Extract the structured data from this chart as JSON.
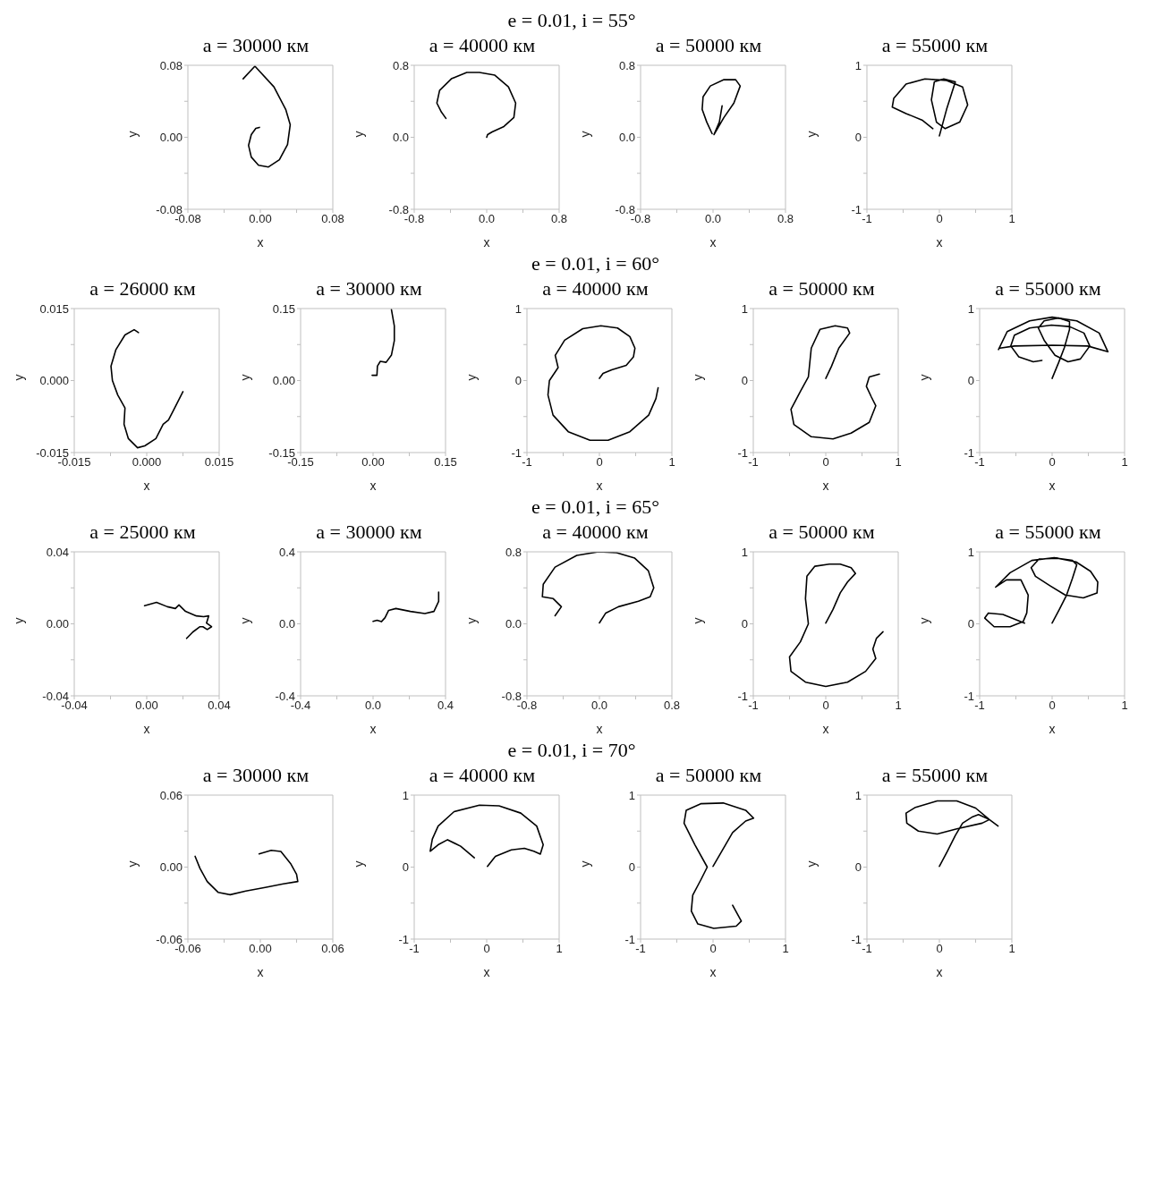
{
  "chart_data": [
    {
      "type": "line",
      "title": "a = 30000 км",
      "xlabel": "x",
      "ylabel": "y",
      "xlim": [
        -0.08,
        0.08
      ],
      "ylim": [
        -0.08,
        0.08
      ],
      "xticks": [
        -0.08,
        {
          "value": -0.04,
          "label": null
        },
        {
          "value": 0,
          "label": "0.00"
        },
        {
          "value": 0.04,
          "label": null
        },
        0.08
      ],
      "yticks": [
        -0.08,
        {
          "value": -0.04,
          "label": null
        },
        {
          "value": 0,
          "label": "0.00"
        },
        {
          "value": 0.04,
          "label": null
        },
        0.08
      ],
      "series": [
        {
          "color": "#000000",
          "x": [
            -0.019,
            -0.006,
            0.015,
            0.028,
            0.033,
            0.03,
            0.021,
            0.009,
            -0.002,
            -0.01,
            -0.013,
            -0.01,
            -0.005,
            -0.001
          ],
          "values": [
            0.065,
            0.079,
            0.056,
            0.031,
            0.014,
            -0.008,
            -0.025,
            -0.033,
            -0.031,
            -0.022,
            -0.009,
            0.003,
            0.01,
            0.011
          ]
        }
      ]
    },
    {
      "type": "line",
      "subtitle": "e = 0.01, i = 55°",
      "title": "a = 40000 км",
      "xlabel": "x",
      "ylabel": "y",
      "xlim": [
        -0.8,
        0.8
      ],
      "ylim": [
        -0.8,
        0.8
      ],
      "xticks": [
        -0.8,
        {
          "value": -0.4,
          "label": null
        },
        {
          "value": 0,
          "label": "0.0"
        },
        {
          "value": 0.4,
          "label": null
        },
        0.8
      ],
      "yticks": [
        -0.8,
        {
          "value": -0.4,
          "label": null
        },
        {
          "value": 0,
          "label": "0.0"
        },
        {
          "value": 0.4,
          "label": null
        },
        0.8
      ],
      "series": [
        {
          "color": "#000000",
          "x": [
            0,
            0.01,
            0.06,
            0.19,
            0.3,
            0.32,
            0.24,
            0.09,
            -0.08,
            -0.22,
            -0.39,
            -0.52,
            -0.55,
            -0.5,
            -0.45
          ],
          "values": [
            0,
            0.03,
            0.06,
            0.12,
            0.22,
            0.38,
            0.56,
            0.69,
            0.72,
            0.72,
            0.65,
            0.52,
            0.38,
            0.28,
            0.21
          ]
        }
      ]
    },
    {
      "type": "line",
      "title": "a = 50000 км",
      "xlabel": "x",
      "ylabel": "y",
      "xlim": [
        -0.8,
        0.8
      ],
      "ylim": [
        -0.8,
        0.8
      ],
      "xticks": [
        -0.8,
        {
          "value": -0.4,
          "label": null
        },
        {
          "value": 0,
          "label": "0.0"
        },
        {
          "value": 0.4,
          "label": null
        },
        0.8
      ],
      "yticks": [
        -0.8,
        {
          "value": -0.4,
          "label": null
        },
        {
          "value": 0,
          "label": "0.0"
        },
        {
          "value": 0.4,
          "label": null
        },
        0.8
      ],
      "series": [
        {
          "color": "#000000",
          "x": [
            0.1,
            0.07,
            0.01,
            0.12,
            0.23,
            0.3,
            0.25,
            0.12,
            -0.03,
            -0.11,
            -0.12,
            -0.07,
            -0.01
          ],
          "values": [
            0.35,
            0.17,
            0.03,
            0.22,
            0.38,
            0.57,
            0.64,
            0.64,
            0.57,
            0.45,
            0.31,
            0.17,
            0.04
          ]
        }
      ]
    },
    {
      "type": "line",
      "title": "a = 55000 км",
      "xlabel": "x",
      "ylabel": "y",
      "xlim": [
        -1,
        1
      ],
      "ylim": [
        -1,
        1
      ],
      "xticks": [
        -1,
        {
          "value": -0.5,
          "label": null
        },
        0,
        {
          "value": 0.5,
          "label": null
        },
        1
      ],
      "yticks": [
        -1,
        {
          "value": -0.5,
          "label": null
        },
        0,
        {
          "value": 0.5,
          "label": null
        },
        1
      ],
      "series": [
        {
          "color": "#000000",
          "x": [
            0.0,
            0.1,
            0.22,
            0.06,
            -0.07,
            -0.11,
            -0.04,
            0.08,
            0.28,
            0.39,
            0.32,
            0.1,
            -0.2,
            -0.46,
            -0.63,
            -0.65,
            -0.46,
            -0.24,
            -0.09
          ],
          "values": [
            0.02,
            0.39,
            0.77,
            0.81,
            0.77,
            0.52,
            0.21,
            0.12,
            0.21,
            0.45,
            0.7,
            0.79,
            0.81,
            0.74,
            0.54,
            0.42,
            0.33,
            0.24,
            0.12
          ]
        }
      ]
    },
    {
      "type": "line",
      "title": "a = 26000 км",
      "xlabel": "x",
      "ylabel": "y",
      "xlim": [
        -0.015,
        0.015
      ],
      "ylim": [
        -0.015,
        0.015
      ],
      "xticks": [
        -0.015,
        {
          "value": -0.0075,
          "label": null
        },
        {
          "value": 0,
          "label": "0.000"
        },
        {
          "value": 0.0075,
          "label": null
        },
        0.015
      ],
      "yticks": [
        -0.015,
        {
          "value": -0.0075,
          "label": null
        },
        {
          "value": 0,
          "label": "0.000"
        },
        {
          "value": 0.0075,
          "label": null
        },
        0.015
      ],
      "series": [
        {
          "color": "#000000",
          "x": [
            -0.0017,
            -0.0026,
            -0.0045,
            -0.0064,
            -0.0074,
            -0.0071,
            -0.006,
            -0.0045,
            -0.0047,
            -0.0038,
            -0.0019,
            -0.0004,
            0.0019,
            0.0034,
            0.0045,
            0.0056,
            0.0075
          ],
          "values": [
            0.01,
            0.0106,
            0.0095,
            0.0064,
            0.003,
            0.0,
            -0.003,
            -0.0057,
            -0.0091,
            -0.0121,
            -0.014,
            -0.0136,
            -0.0121,
            -0.0091,
            -0.0082,
            -0.0061,
            -0.0023
          ]
        }
      ]
    },
    {
      "type": "line",
      "title": "a = 30000 км",
      "xlabel": "x",
      "ylabel": "y",
      "xlim": [
        -0.15,
        0.15
      ],
      "ylim": [
        -0.15,
        0.15
      ],
      "xticks": [
        -0.15,
        {
          "value": -0.075,
          "label": null
        },
        {
          "value": 0,
          "label": "0.00"
        },
        {
          "value": 0.075,
          "label": null
        },
        0.15
      ],
      "yticks": [
        -0.15,
        {
          "value": -0.075,
          "label": null
        },
        {
          "value": 0,
          "label": "0.00"
        },
        {
          "value": 0.075,
          "label": null
        },
        0.15
      ],
      "series": [
        {
          "color": "#000000",
          "x": [
            -0.002,
            0.008,
            0.009,
            0.015,
            0.027,
            0.038,
            0.044,
            0.044,
            0.038
          ],
          "values": [
            0.011,
            0.011,
            0.03,
            0.04,
            0.038,
            0.053,
            0.083,
            0.114,
            0.148
          ]
        }
      ]
    },
    {
      "type": "line",
      "subtitle": "e = 0.01, i = 60°",
      "title": "a = 40000 км",
      "xlabel": "x",
      "ylabel": "y",
      "xlim": [
        -1,
        1
      ],
      "ylim": [
        -1,
        1
      ],
      "xticks": [
        -1,
        {
          "value": -0.5,
          "label": null
        },
        0,
        {
          "value": 0.5,
          "label": null
        },
        1
      ],
      "yticks": [
        -1,
        {
          "value": -0.5,
          "label": null
        },
        0,
        {
          "value": 0.5,
          "label": null
        },
        1
      ],
      "series": [
        {
          "color": "#000000",
          "x": [
            0.0,
            0.05,
            0.17,
            0.37,
            0.47,
            0.49,
            0.42,
            0.25,
            0.02,
            -0.23,
            -0.48,
            -0.61,
            -0.57,
            -0.69,
            -0.71,
            -0.64,
            -0.43,
            -0.13,
            0.12,
            0.42,
            0.68,
            0.78,
            0.81
          ],
          "values": [
            0.03,
            0.1,
            0.15,
            0.21,
            0.33,
            0.45,
            0.61,
            0.73,
            0.76,
            0.72,
            0.56,
            0.35,
            0.18,
            0.0,
            -0.2,
            -0.48,
            -0.71,
            -0.83,
            -0.83,
            -0.71,
            -0.48,
            -0.25,
            -0.1
          ]
        }
      ]
    },
    {
      "type": "line",
      "title": "a = 50000 км",
      "xlabel": "x",
      "ylabel": "y",
      "xlim": [
        -1,
        1
      ],
      "ylim": [
        -1,
        1
      ],
      "xticks": [
        -1,
        {
          "value": -0.5,
          "label": null
        },
        0,
        {
          "value": 0.5,
          "label": null
        },
        1
      ],
      "yticks": [
        -1,
        {
          "value": -0.5,
          "label": null
        },
        0,
        {
          "value": 0.5,
          "label": null
        },
        1
      ],
      "series": [
        {
          "color": "#000000",
          "x": [
            0.0,
            0.08,
            0.18,
            0.33,
            0.3,
            0.13,
            -0.08,
            -0.2,
            -0.24,
            -0.35,
            -0.48,
            -0.44,
            -0.2,
            0.1,
            0.35,
            0.6,
            0.69,
            0.63,
            0.56,
            0.6,
            0.74
          ],
          "values": [
            0.03,
            0.2,
            0.45,
            0.66,
            0.73,
            0.76,
            0.71,
            0.45,
            0.05,
            -0.15,
            -0.4,
            -0.61,
            -0.78,
            -0.81,
            -0.73,
            -0.58,
            -0.35,
            -0.23,
            -0.08,
            0.05,
            0.09
          ]
        }
      ]
    },
    {
      "type": "line",
      "title": "a = 55000 км",
      "xlabel": "x",
      "ylabel": "y",
      "xlim": [
        -1,
        1
      ],
      "ylim": [
        -1,
        1
      ],
      "xticks": [
        -1,
        {
          "value": -0.5,
          "label": null
        },
        0,
        {
          "value": 0.5,
          "label": null
        },
        1
      ],
      "yticks": [
        -1,
        {
          "value": -0.5,
          "label": null
        },
        0,
        {
          "value": 0.5,
          "label": null
        },
        1
      ],
      "series": [
        {
          "color": "#000000",
          "x": [
            0.0,
            0.09,
            0.17,
            0.24,
            0.24,
            0.09,
            -0.11,
            -0.19,
            -0.11,
            0.04,
            0.22,
            0.39,
            0.52,
            0.44,
            0.24,
            -0.01,
            -0.31,
            -0.52,
            -0.57,
            -0.46,
            -0.26,
            -0.14
          ],
          "values": [
            0.03,
            0.25,
            0.46,
            0.71,
            0.82,
            0.87,
            0.83,
            0.73,
            0.56,
            0.35,
            0.26,
            0.3,
            0.48,
            0.66,
            0.75,
            0.77,
            0.73,
            0.63,
            0.48,
            0.33,
            0.26,
            0.28
          ]
        },
        {
          "color": "#000000",
          "x": [
            -0.74,
            -0.62,
            -0.31,
            0.0,
            0.34,
            0.65,
            0.77,
            0.49,
            0.0,
            -0.52,
            -0.72
          ],
          "values": [
            0.43,
            0.68,
            0.83,
            0.88,
            0.83,
            0.66,
            0.4,
            0.48,
            0.49,
            0.48,
            0.45
          ]
        }
      ]
    },
    {
      "type": "line",
      "title": "a = 25000 км",
      "xlabel": "x",
      "ylabel": "y",
      "xlim": [
        -0.04,
        0.04
      ],
      "ylim": [
        -0.04,
        0.04
      ],
      "xticks": [
        -0.04,
        {
          "value": -0.02,
          "label": null
        },
        {
          "value": 0,
          "label": "0.00"
        },
        {
          "value": 0.02,
          "label": null
        },
        0.04
      ],
      "yticks": [
        -0.04,
        {
          "value": -0.02,
          "label": null
        },
        {
          "value": 0,
          "label": "0.00"
        },
        {
          "value": 0.02,
          "label": null
        },
        0.04
      ],
      "series": [
        {
          "color": "#000000",
          "x": [
            -0.0012,
            0.0054,
            0.0114,
            0.0158,
            0.0178,
            0.0214,
            0.0274,
            0.0314,
            0.0342,
            0.033,
            0.0358,
            0.0334,
            0.031,
            0.0294,
            0.0254,
            0.022
          ],
          "values": [
            0.0101,
            0.0119,
            0.0095,
            0.0085,
            0.0105,
            0.0069,
            0.0044,
            0.004,
            0.0044,
            0.0004,
            -0.0016,
            -0.0032,
            -0.0016,
            -0.0016,
            -0.0046,
            -0.0081
          ]
        }
      ]
    },
    {
      "type": "line",
      "title": "a = 30000 км",
      "xlabel": "x",
      "ylabel": "y",
      "xlim": [
        -0.4,
        0.4
      ],
      "ylim": [
        -0.4,
        0.4
      ],
      "xticks": [
        -0.4,
        {
          "value": -0.2,
          "label": null
        },
        {
          "value": 0,
          "label": "0.0"
        },
        {
          "value": 0.2,
          "label": null
        },
        0.4
      ],
      "yticks": [
        -0.4,
        {
          "value": -0.2,
          "label": null
        },
        {
          "value": 0,
          "label": "0.0"
        },
        {
          "value": 0.2,
          "label": null
        },
        0.4
      ],
      "series": [
        {
          "color": "#000000",
          "x": [
            0.0,
            0.022,
            0.046,
            0.066,
            0.086,
            0.126,
            0.206,
            0.286,
            0.336,
            0.362,
            0.362
          ],
          "values": [
            0.014,
            0.02,
            0.012,
            0.034,
            0.075,
            0.085,
            0.069,
            0.057,
            0.069,
            0.125,
            0.176
          ]
        }
      ]
    },
    {
      "type": "line",
      "subtitle": "e = 0.01, i = 65°",
      "title": "a = 40000 км",
      "xlabel": "x",
      "ylabel": "y",
      "xlim": [
        -0.8,
        0.8
      ],
      "ylim": [
        -0.8,
        0.8
      ],
      "xticks": [
        -0.8,
        {
          "value": -0.4,
          "label": null
        },
        {
          "value": 0,
          "label": "0.0"
        },
        {
          "value": 0.4,
          "label": null
        },
        0.8
      ],
      "yticks": [
        -0.8,
        {
          "value": -0.4,
          "label": null
        },
        {
          "value": 0,
          "label": "0.0"
        },
        {
          "value": 0.4,
          "label": null
        },
        0.8
      ],
      "series": [
        {
          "color": "#000000",
          "x": [
            0,
            0.07,
            0.21,
            0.43,
            0.56,
            0.6,
            0.54,
            0.39,
            0.19,
            -0.01,
            -0.25,
            -0.49,
            -0.62,
            -0.63,
            -0.51,
            -0.42,
            -0.49
          ],
          "values": [
            0.01,
            0.12,
            0.19,
            0.25,
            0.3,
            0.4,
            0.59,
            0.73,
            0.79,
            0.8,
            0.76,
            0.63,
            0.44,
            0.3,
            0.28,
            0.19,
            0.09
          ]
        }
      ]
    },
    {
      "type": "line",
      "title": "a = 50000 км",
      "xlabel": "x",
      "ylabel": "y",
      "xlim": [
        -1,
        1
      ],
      "ylim": [
        -1,
        1
      ],
      "xticks": [
        -1,
        {
          "value": -0.5,
          "label": null
        },
        0,
        {
          "value": 0.5,
          "label": null
        },
        1
      ],
      "yticks": [
        -1,
        {
          "value": -0.5,
          "label": null
        },
        0,
        {
          "value": 0.5,
          "label": null
        },
        1
      ],
      "series": [
        {
          "color": "#000000",
          "x": [
            0.0,
            0.1,
            0.2,
            0.3,
            0.41,
            0.35,
            0.2,
            0.05,
            -0.15,
            -0.26,
            -0.28,
            -0.24,
            -0.35,
            -0.5,
            -0.48,
            -0.28,
            0.0,
            0.3,
            0.55,
            0.69,
            0.65,
            0.7,
            0.79
          ],
          "values": [
            0.01,
            0.2,
            0.43,
            0.58,
            0.7,
            0.78,
            0.83,
            0.83,
            0.8,
            0.66,
            0.35,
            0.0,
            -0.25,
            -0.46,
            -0.66,
            -0.81,
            -0.87,
            -0.81,
            -0.66,
            -0.48,
            -0.35,
            -0.2,
            -0.11
          ]
        }
      ]
    },
    {
      "type": "line",
      "title": "a = 55000 км",
      "xlabel": "x",
      "ylabel": "y",
      "xlim": [
        -1,
        1
      ],
      "ylim": [
        -1,
        1
      ],
      "xticks": [
        -1,
        {
          "value": -0.5,
          "label": null
        },
        0,
        {
          "value": 0.5,
          "label": null
        },
        1
      ],
      "yticks": [
        -1,
        {
          "value": -0.5,
          "label": null
        },
        0,
        {
          "value": 0.5,
          "label": null
        },
        1
      ],
      "series": [
        {
          "color": "#000000",
          "x": [
            0.0,
            0.1,
            0.2,
            0.28,
            0.34,
            0.28,
            0.08,
            -0.18,
            -0.29,
            -0.23,
            -0.03,
            0.18,
            0.43,
            0.62,
            0.63,
            0.53,
            0.33,
            0.03,
            -0.28,
            -0.58,
            -0.78,
            -0.63,
            -0.43,
            -0.33,
            -0.35,
            -0.4,
            -0.58,
            -0.8,
            -0.93,
            -0.88,
            -0.68,
            -0.38
          ],
          "values": [
            0.01,
            0.2,
            0.4,
            0.63,
            0.82,
            0.88,
            0.91,
            0.9,
            0.78,
            0.66,
            0.53,
            0.4,
            0.36,
            0.43,
            0.58,
            0.73,
            0.86,
            0.92,
            0.88,
            0.71,
            0.51,
            0.61,
            0.61,
            0.4,
            0.15,
            0.03,
            -0.04,
            -0.04,
            0.08,
            0.15,
            0.13,
            0.01
          ]
        }
      ]
    },
    {
      "type": "line",
      "title": "a = 30000 км",
      "xlabel": "x",
      "ylabel": "y",
      "xlim": [
        -0.06,
        0.06
      ],
      "ylim": [
        -0.06,
        0.06
      ],
      "xticks": [
        -0.06,
        {
          "value": -0.03,
          "label": null
        },
        {
          "value": 0,
          "label": "0.00"
        },
        {
          "value": 0.03,
          "label": null
        },
        0.06
      ],
      "yticks": [
        -0.06,
        {
          "value": -0.03,
          "label": null
        },
        {
          "value": 0,
          "label": "0.00"
        },
        {
          "value": 0.03,
          "label": null
        },
        0.06
      ],
      "series": [
        {
          "color": "#000000",
          "x": [
            -0.001,
            0.009,
            0.017,
            0.025,
            0.03,
            0.031,
            0.019,
            0.004,
            -0.012,
            -0.025,
            -0.035,
            -0.044,
            -0.05,
            -0.054
          ],
          "values": [
            0.011,
            0.014,
            0.013,
            0.003,
            -0.006,
            -0.012,
            -0.014,
            -0.017,
            -0.02,
            -0.023,
            -0.021,
            -0.012,
            -0.001,
            0.009
          ]
        }
      ]
    },
    {
      "type": "line",
      "subtitle": "e = 0.01, i = 70°",
      "title": "a = 40000 км",
      "xlabel": "x",
      "ylabel": "y",
      "xlim": [
        -1,
        1
      ],
      "ylim": [
        -1,
        1
      ],
      "xticks": [
        -1,
        {
          "value": -0.5,
          "label": null
        },
        0,
        {
          "value": 0.5,
          "label": null
        },
        1
      ],
      "yticks": [
        -1,
        {
          "value": -0.5,
          "label": null
        },
        0,
        {
          "value": 0.5,
          "label": null
        },
        1
      ],
      "series": [
        {
          "color": "#000000",
          "x": [
            0.01,
            0.12,
            0.34,
            0.52,
            0.65,
            0.74,
            0.78,
            0.69,
            0.47,
            0.17,
            -0.1,
            -0.45,
            -0.67,
            -0.75,
            -0.78,
            -0.67,
            -0.54,
            -0.36,
            -0.17
          ],
          "values": [
            0.01,
            0.15,
            0.24,
            0.26,
            0.22,
            0.18,
            0.31,
            0.57,
            0.75,
            0.85,
            0.86,
            0.77,
            0.57,
            0.39,
            0.22,
            0.31,
            0.38,
            0.29,
            0.13
          ]
        }
      ]
    },
    {
      "type": "line",
      "title": "a = 50000 км",
      "xlabel": "x",
      "ylabel": "y",
      "xlim": [
        -1,
        1
      ],
      "ylim": [
        -1,
        1
      ],
      "xticks": [
        -1,
        {
          "value": -0.5,
          "label": null
        },
        0,
        {
          "value": 0.5,
          "label": null
        },
        1
      ],
      "yticks": [
        -1,
        {
          "value": -0.5,
          "label": null
        },
        0,
        {
          "value": 0.5,
          "label": null
        },
        1
      ],
      "series": [
        {
          "color": "#000000",
          "x": [
            0.0,
            0.12,
            0.27,
            0.45,
            0.56,
            0.45,
            0.14,
            -0.17,
            -0.37,
            -0.4,
            -0.25,
            -0.08,
            -0.17,
            -0.28,
            -0.3,
            -0.21,
            0.01,
            0.32,
            0.39,
            0.27
          ],
          "values": [
            0.01,
            0.22,
            0.48,
            0.64,
            0.68,
            0.79,
            0.89,
            0.88,
            0.79,
            0.61,
            0.31,
            0.0,
            -0.18,
            -0.39,
            -0.61,
            -0.79,
            -0.85,
            -0.82,
            -0.75,
            -0.53
          ]
        }
      ]
    },
    {
      "type": "line",
      "title": "a = 55000 км",
      "xlabel": "x",
      "ylabel": "y",
      "xlim": [
        -1,
        1
      ],
      "ylim": [
        -1,
        1
      ],
      "xticks": [
        -1,
        {
          "value": -0.5,
          "label": null
        },
        0,
        {
          "value": 0.5,
          "label": null
        },
        1
      ],
      "yticks": [
        -1,
        {
          "value": -0.5,
          "label": null
        },
        0,
        {
          "value": 0.5,
          "label": null
        },
        1
      ],
      "series": [
        {
          "color": "#000000",
          "x": [
            0.0,
            0.11,
            0.22,
            0.32,
            0.46,
            0.54,
            0.69,
            0.59,
            0.24,
            -0.03,
            -0.29,
            -0.45,
            -0.46,
            -0.33,
            -0.03,
            0.24,
            0.5,
            0.69,
            0.81
          ],
          "values": [
            0.01,
            0.22,
            0.44,
            0.61,
            0.7,
            0.73,
            0.66,
            0.61,
            0.53,
            0.46,
            0.5,
            0.61,
            0.75,
            0.83,
            0.92,
            0.92,
            0.82,
            0.66,
            0.57
          ]
        }
      ]
    }
  ]
}
